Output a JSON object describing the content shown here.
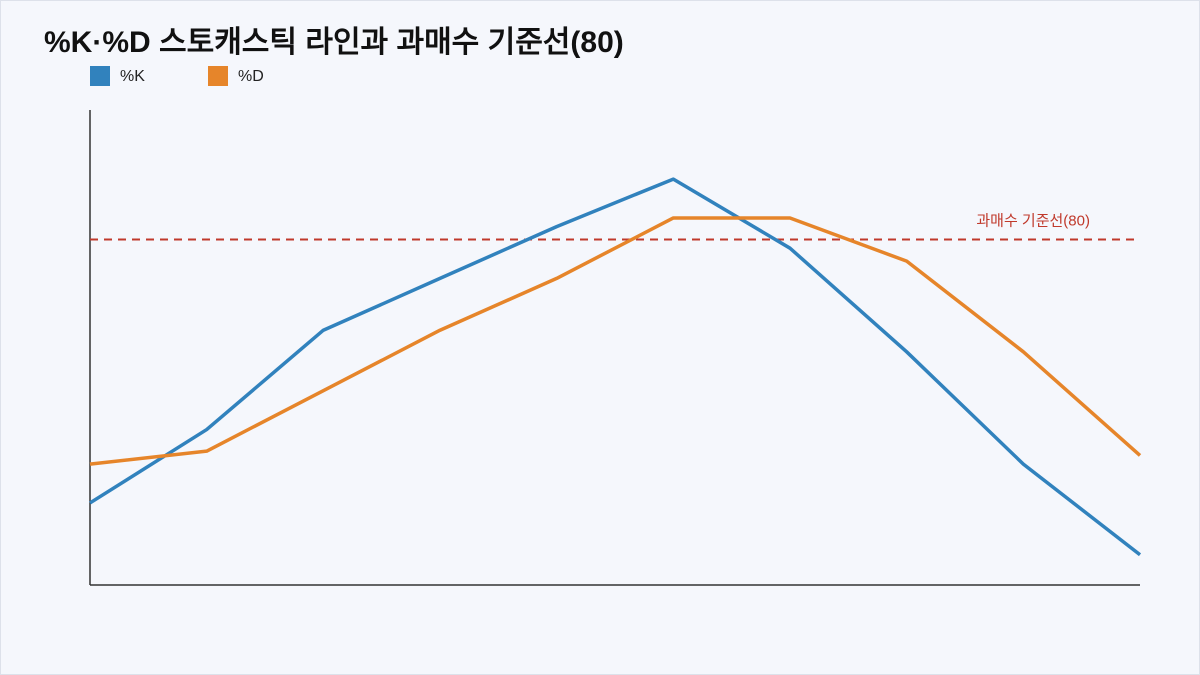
{
  "chart_data": {
    "type": "line",
    "title": "%K·%D 스토캐스틱 라인과 과매수 기준선(80)",
    "categories": [
      null,
      null,
      null,
      null,
      null,
      null,
      null,
      null,
      null,
      null
    ],
    "series": [
      {
        "name": "%K",
        "color": "#3182bd",
        "values": [
          19,
          36,
          59,
          71,
          83,
          94,
          78,
          54,
          28,
          7
        ]
      },
      {
        "name": "%D",
        "color": "#e6852a",
        "values": [
          28,
          31,
          45,
          59,
          71,
          85,
          85,
          75,
          54,
          30
        ]
      }
    ],
    "ylim": [
      0,
      110
    ],
    "reference_line": {
      "value": 80,
      "label": "과매수 기준선(80)",
      "color": "#c0392b"
    },
    "legend": "top-left"
  }
}
